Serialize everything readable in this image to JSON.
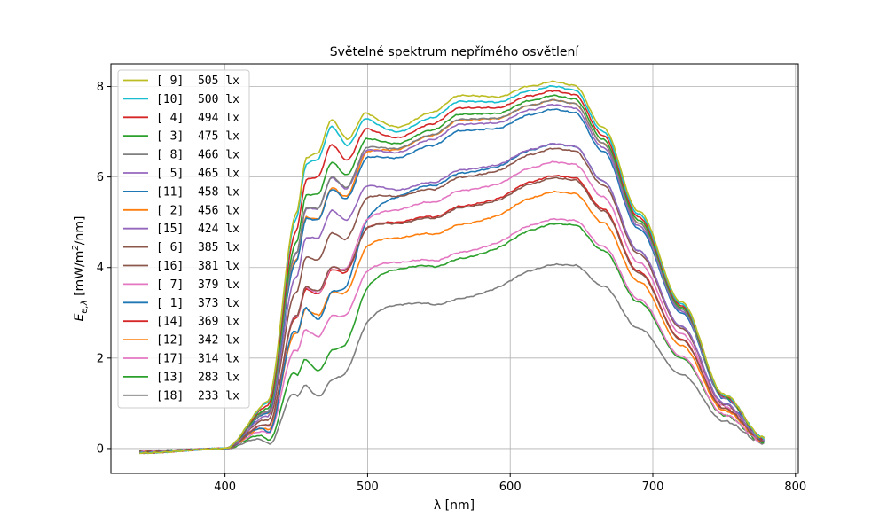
{
  "chart_data": {
    "type": "line",
    "title": "Světelné spektrum nepřímého osvětlení",
    "xlabel": "λ [nm]",
    "ylabel_main": "E",
    "ylabel_sub": "e,λ",
    "ylabel_unit_pre": " [mW/m",
    "ylabel_unit_sup": "2",
    "ylabel_unit_post": "/nm]",
    "xlim": [
      320,
      802
    ],
    "ylim": [
      -0.55,
      8.5
    ],
    "xticks": [
      400,
      500,
      600,
      700,
      800
    ],
    "yticks": [
      0,
      2,
      4,
      6,
      8
    ],
    "grid": true,
    "legend_position": "upper-left",
    "x": [
      340,
      400,
      430,
      450,
      457,
      465,
      475,
      485,
      500,
      520,
      545,
      565,
      590,
      615,
      630,
      645,
      665,
      690,
      720,
      750,
      778
    ],
    "base_shape": [
      -0.013,
      0.0,
      0.115,
      0.6,
      0.74,
      0.74,
      0.835,
      0.8,
      0.915,
      0.905,
      0.945,
      0.992,
      0.995,
      1.035,
      1.05,
      1.04,
      0.92,
      0.68,
      0.42,
      0.155,
      0.03
    ],
    "series": [
      {
        "name": "[ 9]  505 lx",
        "color": "#bcbd22",
        "peak": 8.1,
        "plateau": 7.3,
        "step": 5.05
      },
      {
        "name": "[10]  500 lx",
        "color": "#17becf",
        "peak": 8.0,
        "plateau": 7.2,
        "step": 5.0
      },
      {
        "name": "[ 4]  494 lx",
        "color": "#d62728",
        "peak": 7.9,
        "plateau": 7.05,
        "step": 4.75
      },
      {
        "name": "[ 3]  475 lx",
        "color": "#2ca02c",
        "peak": 7.8,
        "plateau": 6.9,
        "step": 4.5
      },
      {
        "name": "[ 8]  466 lx",
        "color": "#7f7f7f",
        "peak": 7.7,
        "plateau": 6.85,
        "step": 4.3
      },
      {
        "name": "[ 5]  465 lx",
        "color": "#9467bd",
        "peak": 7.6,
        "plateau": 6.8,
        "step": 4.35
      },
      {
        "name": "[11]  458 lx",
        "color": "#1f77b4",
        "peak": 7.5,
        "plateau": 6.65,
        "step": 4.2
      },
      {
        "name": "[ 2]  456 lx",
        "color": "#ff7f0e",
        "peak": 7.7,
        "plateau": 6.8,
        "step": 4.1
      },
      {
        "name": "[15]  424 lx",
        "color": "#9467bd",
        "peak": 6.75,
        "plateau": 6.05,
        "step": 4.3
      },
      {
        "name": "[ 6]  385 lx",
        "color": "#8c564b",
        "peak": 6.65,
        "plateau": 5.8,
        "step": 3.9
      },
      {
        "name": "[16]  381 lx",
        "color": "#8c564b",
        "peak": 6.0,
        "plateau": 5.45,
        "step": 3.6
      },
      {
        "name": "[ 7]  379 lx",
        "color": "#e377c2",
        "peak": 6.35,
        "plateau": 5.7,
        "step": 3.35
      },
      {
        "name": "[ 1]  373 lx",
        "color": "#1f77b4",
        "peak": 6.75,
        "plateau": 5.8,
        "step": 2.6
      },
      {
        "name": "[14]  369 lx",
        "color": "#d62728",
        "peak": 6.05,
        "plateau": 5.4,
        "step": 3.5
      },
      {
        "name": "[12]  342 lx",
        "color": "#ff7f0e",
        "peak": 5.7,
        "plateau": 5.0,
        "step": 3.2
      },
      {
        "name": "[17]  314 lx",
        "color": "#e377c2",
        "peak": 5.1,
        "plateau": 4.55,
        "step": 3.0
      },
      {
        "name": "[13]  283 lx",
        "color": "#2ca02c",
        "peak": 5.0,
        "plateau": 4.3,
        "step": 2.1
      },
      {
        "name": "[18]  233 lx",
        "color": "#7f7f7f",
        "peak": 4.1,
        "plateau": 3.55,
        "step": 1.7
      }
    ]
  }
}
